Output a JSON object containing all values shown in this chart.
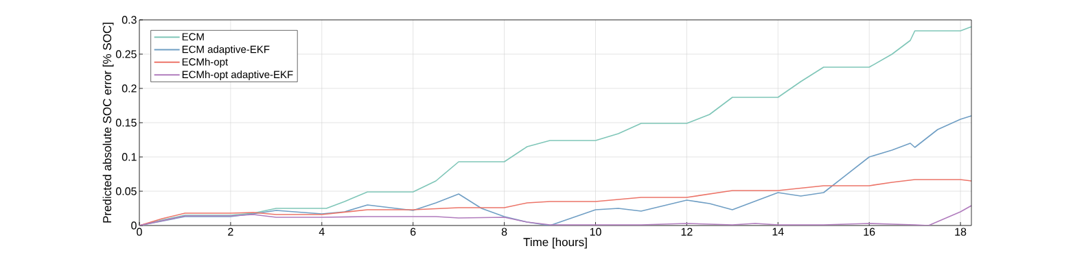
{
  "chart_data": {
    "type": "line",
    "xlabel": "Time [hours]",
    "ylabel": "Predicted absolute SOC error [% SOC]",
    "xlim": [
      0,
      18.24
    ],
    "ylim": [
      0,
      0.3
    ],
    "xticks": [
      0,
      2,
      4,
      6,
      8,
      10,
      12,
      14,
      16,
      18
    ],
    "yticks": [
      0,
      0.05,
      0.1,
      0.15,
      0.2,
      0.25,
      0.3
    ],
    "grid": true,
    "legend": "top left",
    "line_style": "solid",
    "series": [
      {
        "name": "ECM",
        "color": "#7fc6b8",
        "x": [
          0,
          0.5,
          1,
          2,
          2.5,
          3,
          4.1,
          4.5,
          5,
          6,
          6.5,
          7,
          8,
          8.5,
          9,
          10,
          10.5,
          11,
          12,
          12.5,
          13,
          14,
          14.5,
          15,
          16,
          16.5,
          16.9,
          17,
          18,
          18.24
        ],
        "values": [
          0,
          0.008,
          0.015,
          0.015,
          0.018,
          0.025,
          0.025,
          0.035,
          0.049,
          0.049,
          0.065,
          0.093,
          0.093,
          0.115,
          0.124,
          0.124,
          0.134,
          0.149,
          0.149,
          0.162,
          0.187,
          0.187,
          0.21,
          0.231,
          0.231,
          0.25,
          0.27,
          0.284,
          0.284,
          0.29
        ]
      },
      {
        "name": "ECM adaptive-EKF",
        "color": "#6f9ec4",
        "x": [
          0,
          1,
          2,
          2.5,
          3,
          4,
          4.5,
          5,
          6,
          6.5,
          7,
          7.5,
          8,
          8.5,
          9,
          10,
          10.5,
          11,
          12,
          12.5,
          13,
          14,
          14.5,
          15,
          16,
          16.5,
          16.9,
          17,
          17.5,
          18,
          18.24
        ],
        "values": [
          0,
          0.013,
          0.013,
          0.017,
          0.022,
          0.017,
          0.02,
          0.03,
          0.022,
          0.033,
          0.046,
          0.025,
          0.013,
          0.005,
          0,
          0.023,
          0.025,
          0.021,
          0.037,
          0.032,
          0.023,
          0.048,
          0.043,
          0.048,
          0.1,
          0.11,
          0.12,
          0.114,
          0.14,
          0.155,
          0.16
        ]
      },
      {
        "name": "ECMh-opt",
        "color": "#ec7468",
        "x": [
          0,
          0.5,
          1,
          2,
          2.5,
          3,
          4,
          5,
          6,
          7,
          8,
          8.5,
          9,
          10,
          11,
          12,
          13,
          14,
          15,
          16,
          16.5,
          17,
          18,
          18.24
        ],
        "values": [
          0,
          0.01,
          0.018,
          0.018,
          0.019,
          0.016,
          0.016,
          0.023,
          0.023,
          0.026,
          0.026,
          0.033,
          0.035,
          0.035,
          0.041,
          0.041,
          0.051,
          0.051,
          0.058,
          0.058,
          0.063,
          0.067,
          0.067,
          0.065
        ]
      },
      {
        "name": "ECMh-opt adaptive-EKF",
        "color": "#b07bbd",
        "x": [
          0,
          1,
          2,
          2.5,
          3,
          4,
          5,
          6,
          6.5,
          7,
          8,
          8.5,
          9,
          10,
          11,
          12,
          13,
          13.5,
          14,
          15,
          16,
          16.5,
          17,
          17.3,
          18,
          18.24
        ],
        "values": [
          0,
          0.014,
          0.014,
          0.016,
          0.012,
          0.012,
          0.013,
          0.013,
          0.013,
          0.011,
          0.012,
          0.005,
          0.001,
          0.001,
          0.001,
          0.003,
          0.001,
          0.003,
          0.001,
          0.001,
          0.003,
          0.002,
          0.001,
          0,
          0.02,
          0.029
        ]
      }
    ]
  }
}
